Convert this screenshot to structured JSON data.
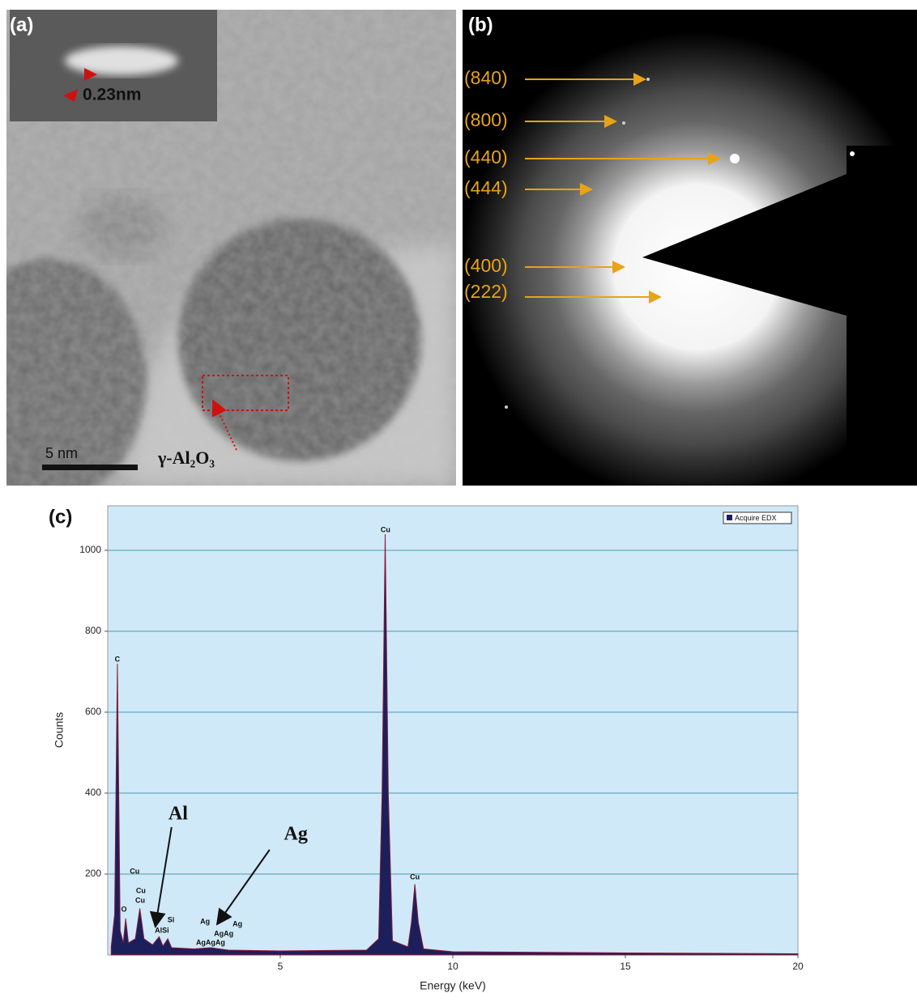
{
  "panels": {
    "a": {
      "label": "(a)",
      "inset_label": "0.23nm",
      "scale_bar": "5 nm",
      "annotation": "γ-Al₂O₃"
    },
    "b": {
      "label": "(b)",
      "rings": [
        "(840)",
        "(800)",
        "(440)",
        "(444)",
        "(400)",
        "(222)"
      ]
    }
  },
  "chart_data": {
    "type": "area",
    "panel_label": "(c)",
    "xlabel": "Energy (keV)",
    "ylabel": "Counts",
    "xlim": [
      0,
      20
    ],
    "ylim": [
      0,
      1110
    ],
    "xticks": [
      5,
      10,
      15,
      20
    ],
    "yticks": [
      200,
      400,
      600,
      800,
      1000
    ],
    "grid": true,
    "legend": "top-right",
    "x": [
      0.1,
      0.2,
      0.28,
      0.36,
      0.45,
      0.52,
      0.6,
      0.8,
      0.93,
      1.05,
      1.3,
      1.49,
      1.6,
      1.74,
      1.85,
      2.5,
      2.98,
      3.5,
      5,
      7.5,
      7.85,
      7.95,
      8.04,
      8.13,
      8.25,
      8.7,
      8.8,
      8.9,
      9.0,
      9.15,
      10,
      15,
      20
    ],
    "series": [
      {
        "name": "Acquire EDX",
        "color": "#1b1f5c",
        "values": [
          20,
          100,
          720,
          60,
          30,
          90,
          30,
          40,
          115,
          40,
          25,
          45,
          22,
          40,
          18,
          15,
          18,
          12,
          10,
          12,
          40,
          400,
          1040,
          400,
          35,
          20,
          80,
          175,
          80,
          15,
          8,
          5,
          3
        ]
      }
    ],
    "peak_labels": [
      {
        "text": "C",
        "x": 0.28,
        "y": 730
      },
      {
        "text": "Cu",
        "x": 0.78,
        "y": 206
      },
      {
        "text": "Cu",
        "x": 0.96,
        "y": 158
      },
      {
        "text": "Cu",
        "x": 0.94,
        "y": 134
      },
      {
        "text": "O",
        "x": 0.47,
        "y": 112
      },
      {
        "text": "AlSi",
        "x": 1.57,
        "y": 60
      },
      {
        "text": "Si",
        "x": 1.83,
        "y": 86
      },
      {
        "text": "Ag",
        "x": 2.82,
        "y": 82
      },
      {
        "text": "Ag",
        "x": 3.76,
        "y": 76
      },
      {
        "text": "AgAg",
        "x": 3.36,
        "y": 52
      },
      {
        "text": "AgAgAg",
        "x": 2.98,
        "y": 30
      },
      {
        "text": "Cu",
        "x": 8.05,
        "y": 1050
      },
      {
        "text": "Cu",
        "x": 8.9,
        "y": 192
      }
    ],
    "arrows": [
      {
        "text": "Al",
        "x": 2.04,
        "y": 346,
        "x_start": 1.85,
        "y_start": 316,
        "x_end": 1.38,
        "y_end": 70
      },
      {
        "text": "Ag",
        "x": 5.45,
        "y": 296,
        "x_start": 4.69,
        "y_start": 260,
        "x_end": 3.17,
        "y_end": 76
      }
    ]
  }
}
